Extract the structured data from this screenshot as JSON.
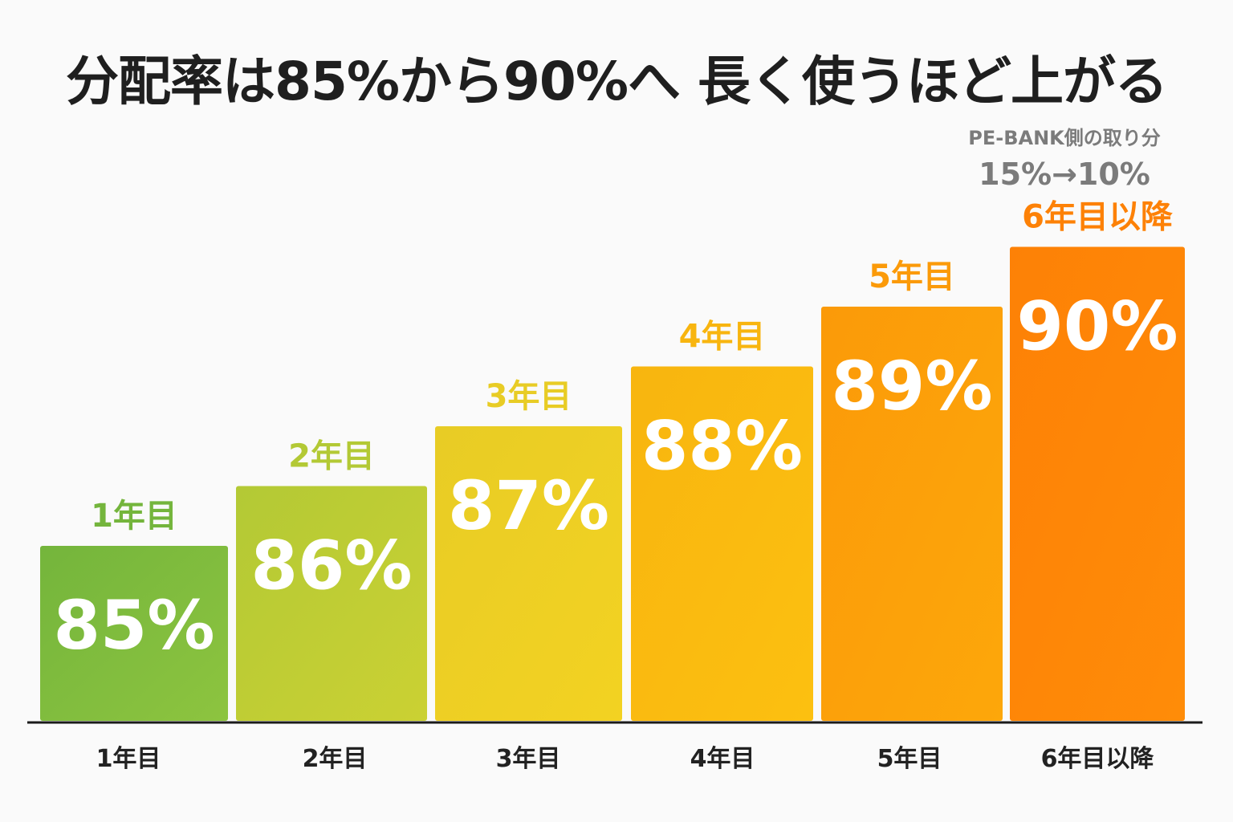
{
  "title": "分配率は85%から90%へ 長く使うほど上がる",
  "note": {
    "label": "PE-BANK側の取り分",
    "value": "15%→10%"
  },
  "chart_data": {
    "type": "bar",
    "categories": [
      "1年目",
      "2年目",
      "3年目",
      "4年目",
      "5年目",
      "6年目以降"
    ],
    "values": [
      85,
      86,
      87,
      88,
      89,
      90
    ],
    "value_labels": [
      "85%",
      "86%",
      "87%",
      "88%",
      "89%",
      "90%"
    ],
    "title": "分配率は85%から90%へ 長く使うほど上がる",
    "xlabel": "",
    "ylabel": "",
    "grid": false,
    "legend": "none",
    "colors": [
      "#74b53c",
      "#b3c935",
      "#e8cc25",
      "#f8b50f",
      "#fb9a09",
      "#fd8106"
    ],
    "colors_end": [
      "#8dc43f",
      "#cbd133",
      "#f3d222",
      "#fcc010",
      "#fda70a",
      "#ff8c08"
    ]
  }
}
